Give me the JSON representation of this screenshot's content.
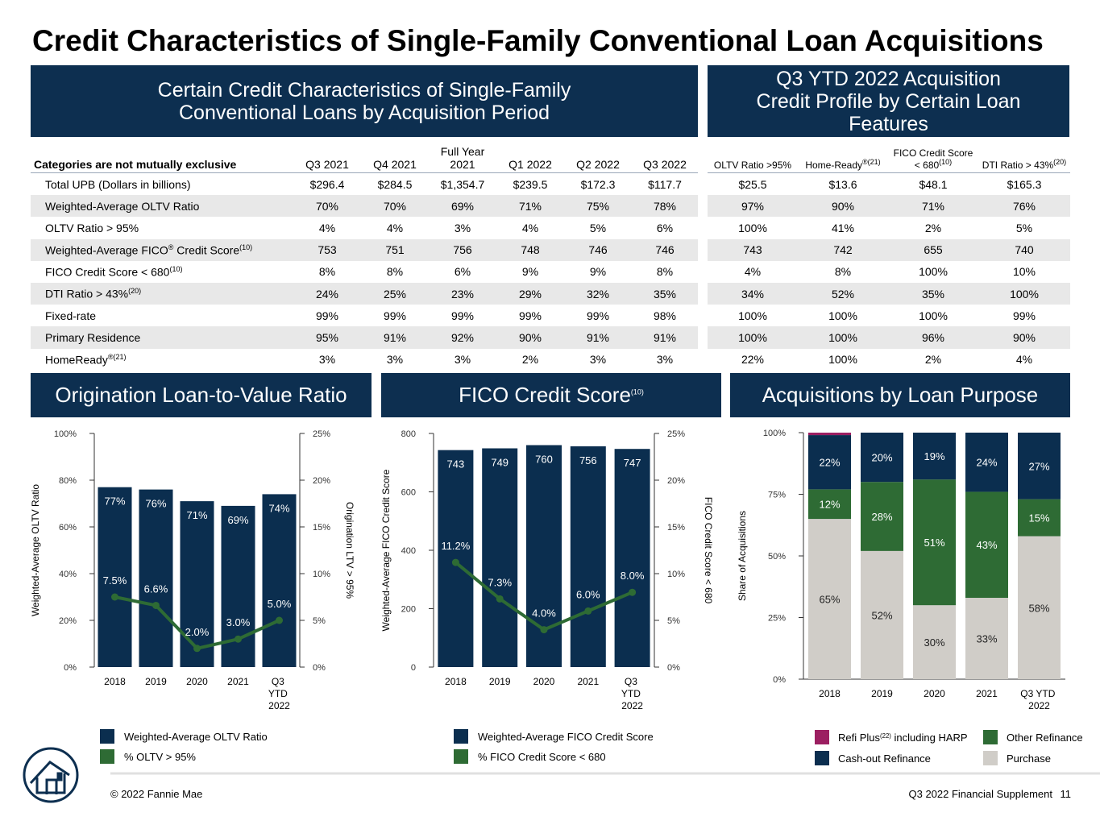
{
  "title": "Credit Characteristics of Single-Family Conventional Loan Acquisitions",
  "left_table": {
    "header": "Certain Credit Characteristics of Single-Family Conventional Loans by Acquisition Period",
    "columns": [
      "Categories are not mutually exclusive",
      "Q3 2021",
      "Q4 2021",
      "Full Year 2021",
      "Q1 2022",
      "Q2 2022",
      "Q3 2022"
    ],
    "rows": [
      [
        "Total UPB (Dollars in billions)",
        "$296.4",
        "$284.5",
        "$1,354.7",
        "$239.5",
        "$172.3",
        "$117.7"
      ],
      [
        "Weighted-Average OLTV Ratio",
        "70%",
        "70%",
        "69%",
        "71%",
        "75%",
        "78%"
      ],
      [
        "OLTV Ratio > 95%",
        "4%",
        "4%",
        "3%",
        "4%",
        "5%",
        "6%"
      ],
      [
        [
          "Weighted-Average FICO",
          "®",
          " Credit Score",
          "(10)"
        ],
        "753",
        "751",
        "756",
        "748",
        "746",
        "746"
      ],
      [
        [
          "FICO Credit Score < 680",
          "(10)"
        ],
        "8%",
        "8%",
        "6%",
        "9%",
        "9%",
        "8%"
      ],
      [
        [
          "DTI Ratio > 43%",
          "(20)"
        ],
        "24%",
        "25%",
        "23%",
        "29%",
        "32%",
        "35%"
      ],
      [
        "Fixed-rate",
        "99%",
        "99%",
        "99%",
        "99%",
        "99%",
        "98%"
      ],
      [
        "Primary Residence",
        "95%",
        "91%",
        "92%",
        "90%",
        "91%",
        "91%"
      ],
      [
        [
          "HomeReady",
          "®(21)"
        ],
        "3%",
        "3%",
        "3%",
        "2%",
        "3%",
        "3%"
      ]
    ]
  },
  "right_table": {
    "header": "Q3 YTD 2022 Acquisition Credit Profile by Certain Loan Features",
    "columns": [
      "OLTV Ratio >95%",
      [
        "Home-Ready",
        "®(21)"
      ],
      [
        "FICO Credit Score < 680",
        "(10)"
      ],
      [
        "DTI Ratio > 43%",
        "(20)"
      ]
    ],
    "rows": [
      [
        "$25.5",
        "$13.6",
        "$48.1",
        "$165.3"
      ],
      [
        "97%",
        "90%",
        "71%",
        "76%"
      ],
      [
        "100%",
        "41%",
        "2%",
        "5%"
      ],
      [
        "743",
        "742",
        "655",
        "740"
      ],
      [
        "4%",
        "8%",
        "100%",
        "10%"
      ],
      [
        "34%",
        "52%",
        "35%",
        "100%"
      ],
      [
        "100%",
        "100%",
        "100%",
        "99%"
      ],
      [
        "100%",
        "100%",
        "96%",
        "90%"
      ],
      [
        "22%",
        "100%",
        "2%",
        "4%"
      ]
    ]
  },
  "chart_data": [
    {
      "type": "bar",
      "title": "Origination Loan-to-Value Ratio",
      "categories": [
        "2018",
        "2019",
        "2020",
        "2021",
        "Q3 YTD 2022"
      ],
      "series": [
        {
          "name": "Weighted-Average OLTV Ratio",
          "type": "bar",
          "color": "#0b2e4f",
          "values": [
            77,
            76,
            71,
            69,
            74
          ],
          "value_labels": [
            "77%",
            "76%",
            "71%",
            "69%",
            "74%"
          ]
        },
        {
          "name": "% OLTV > 95%",
          "type": "line",
          "axis": "y2",
          "color": "#2e6b34",
          "values": [
            7.5,
            6.6,
            2.0,
            3.0,
            5.0
          ],
          "value_labels": [
            "7.5%",
            "6.6%",
            "2.0%",
            "3.0%",
            "5.0%"
          ]
        }
      ],
      "ylabel": "Weighted-Average OLTV Ratio",
      "y2label": "Origination LTV > 95%",
      "ylim": [
        0,
        100
      ],
      "yticks": [
        {
          "value": 0,
          "label": "0%"
        },
        {
          "value": 20,
          "label": "20%"
        },
        {
          "value": 40,
          "label": "40%"
        },
        {
          "value": 60,
          "label": "60%"
        },
        {
          "value": 80,
          "label": "80%"
        },
        {
          "value": 100,
          "label": "100%"
        }
      ],
      "y2lim": [
        0,
        25
      ],
      "y2ticks": [
        {
          "value": 0,
          "label": "0%"
        },
        {
          "value": 5,
          "label": "5%"
        },
        {
          "value": 10,
          "label": "10%"
        },
        {
          "value": 15,
          "label": "15%"
        },
        {
          "value": 20,
          "label": "20%"
        },
        {
          "value": 25,
          "label": "25%"
        }
      ]
    },
    {
      "type": "bar",
      "title": [
        "FICO Credit Score",
        "(10)"
      ],
      "categories": [
        "2018",
        "2019",
        "2020",
        "2021",
        "Q3 YTD 2022"
      ],
      "series": [
        {
          "name": "Weighted-Average FICO Credit Score",
          "type": "bar",
          "color": "#0b2e4f",
          "values": [
            743,
            749,
            760,
            756,
            747
          ]
        },
        {
          "name": "% FICO Credit Score < 680",
          "type": "line",
          "axis": "y2",
          "color": "#2e6b34",
          "values": [
            11.2,
            7.3,
            4.0,
            6.0,
            8.0
          ],
          "value_labels": [
            "11.2%",
            "7.3%",
            "4.0%",
            "6.0%",
            "8.0%"
          ]
        }
      ],
      "ylabel": "Weighted-Average FICO Credit Score",
      "y2label": "FICO Credit Score < 680",
      "ylim": [
        0,
        800
      ],
      "yticks": [
        0,
        200,
        400,
        600,
        800
      ],
      "y2lim": [
        0,
        25
      ],
      "y2ticks": [
        {
          "value": 0,
          "label": "0%"
        },
        {
          "value": 5,
          "label": "5%"
        },
        {
          "value": 10,
          "label": "10%"
        },
        {
          "value": 15,
          "label": "15%"
        },
        {
          "value": 20,
          "label": "20%"
        },
        {
          "value": 25,
          "label": "25%"
        }
      ]
    },
    {
      "type": "stacked_bar",
      "title": "Acquisitions by Loan Purpose",
      "categories": [
        "2018",
        "2019",
        "2020",
        "2021",
        "Q3 YTD 2022"
      ],
      "series": [
        {
          "name": "Purchase",
          "color": "#d0cdc8",
          "values": [
            65,
            52,
            30,
            33,
            58
          ],
          "value_labels": [
            "65%",
            "52%",
            "30%",
            "33%",
            "58%"
          ]
        },
        {
          "name": "Other Refinance",
          "color": "#2e6b34",
          "values": [
            12,
            28,
            51,
            43,
            15
          ],
          "value_labels": [
            "12%",
            "28%",
            "51%",
            "43%",
            "15%"
          ]
        },
        {
          "name": "Cash-out Refinance",
          "color": "#0b2e4f",
          "values": [
            22,
            20,
            19,
            24,
            27
          ],
          "value_labels": [
            "22%",
            "20%",
            "19%",
            "24%",
            "27%"
          ]
        },
        {
          "name": [
            "Refi Plus",
            "(22)",
            " including HARP"
          ],
          "color": "#9c1f61",
          "values": [
            1,
            0,
            0,
            0,
            0
          ]
        }
      ],
      "ylabel": "Share of Acquisitions",
      "ylim": [
        0,
        100
      ],
      "yticks": [
        {
          "value": 0,
          "label": "0%"
        },
        {
          "value": 25,
          "label": "25%"
        },
        {
          "value": 50,
          "label": "50%"
        },
        {
          "value": 75,
          "label": "75%"
        },
        {
          "value": 100,
          "label": "100%"
        }
      ]
    }
  ],
  "footer": {
    "copyright": "© 2022 Fannie Mae",
    "document": "Q3 2022 Financial Supplement",
    "page": "11"
  }
}
